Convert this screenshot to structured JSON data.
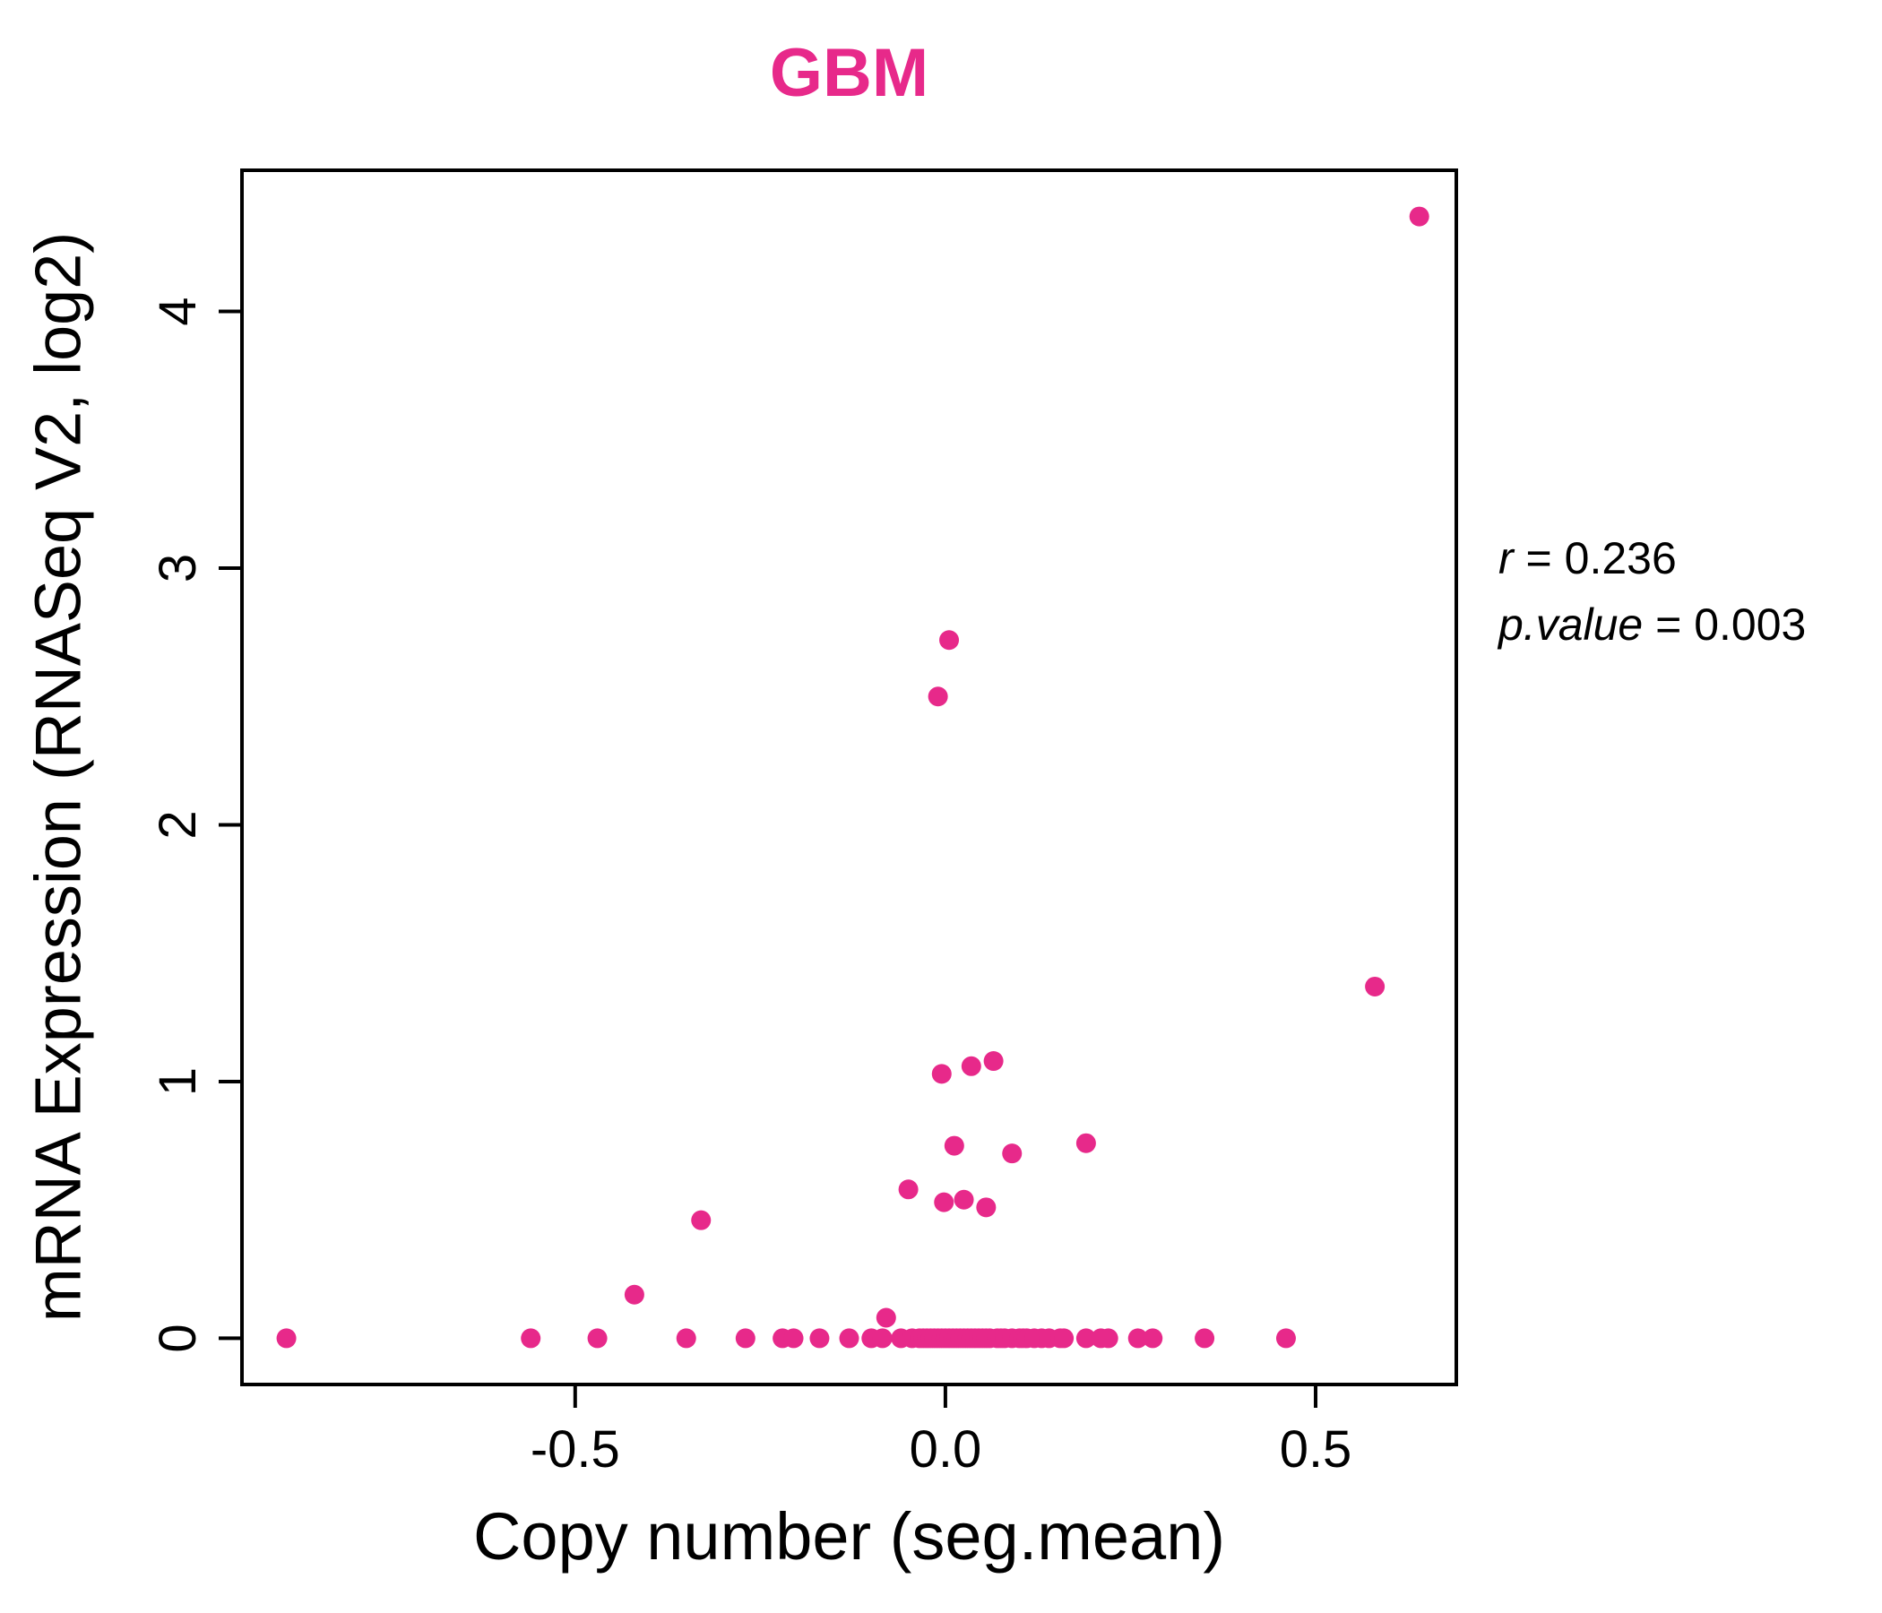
{
  "chart": {
    "title": "GBM",
    "xlabel": "Copy number (seg.mean)",
    "ylabel": "mRNA Expression (RNASeq V2, log2)",
    "annotation": {
      "r_var": "r",
      "r_rest": " = 0.236",
      "p_var": "p.value",
      "p_rest": " = 0.003"
    }
  },
  "colors": {
    "accent": "#e7298a",
    "axis": "#000000",
    "background": "#ffffff"
  },
  "chart_data": {
    "type": "scatter",
    "title": "GBM",
    "xlabel": "Copy number (seg.mean)",
    "ylabel": "mRNA Expression (RNASeq V2, log2)",
    "xlim": [
      -0.95,
      0.69
    ],
    "ylim": [
      -0.18,
      4.55
    ],
    "xticks": [
      -0.5,
      0.0,
      0.5
    ],
    "xtick_labels": [
      "-0.5",
      "0.0",
      "0.5"
    ],
    "yticks": [
      0,
      1,
      2,
      3,
      4
    ],
    "ytick_labels": [
      "0",
      "1",
      "2",
      "3",
      "4"
    ],
    "grid": false,
    "legend_position": "none",
    "point_color": "#e7298a",
    "point_radius": 11,
    "annotations": [
      "r = 0.236",
      "p.value = 0.003"
    ],
    "points": [
      [
        0.64,
        4.37
      ],
      [
        0.005,
        2.72
      ],
      [
        -0.01,
        2.5
      ],
      [
        0.58,
        1.37
      ],
      [
        -0.005,
        1.03
      ],
      [
        0.035,
        1.06
      ],
      [
        0.065,
        1.08
      ],
      [
        0.012,
        0.75
      ],
      [
        0.09,
        0.72
      ],
      [
        0.19,
        0.76
      ],
      [
        -0.05,
        0.58
      ],
      [
        -0.002,
        0.53
      ],
      [
        0.025,
        0.54
      ],
      [
        0.055,
        0.51
      ],
      [
        -0.33,
        0.46
      ],
      [
        -0.42,
        0.17
      ],
      [
        -0.08,
        0.08
      ],
      [
        -0.89,
        0
      ],
      [
        -0.56,
        0
      ],
      [
        -0.47,
        0
      ],
      [
        -0.35,
        0
      ],
      [
        -0.27,
        0
      ],
      [
        -0.22,
        0
      ],
      [
        -0.205,
        0
      ],
      [
        -0.17,
        0
      ],
      [
        -0.13,
        0
      ],
      [
        -0.1,
        0
      ],
      [
        -0.085,
        0
      ],
      [
        -0.06,
        0
      ],
      [
        -0.045,
        0
      ],
      [
        -0.035,
        0
      ],
      [
        -0.03,
        0
      ],
      [
        -0.025,
        0
      ],
      [
        -0.02,
        0
      ],
      [
        -0.015,
        0
      ],
      [
        -0.01,
        0
      ],
      [
        -0.005,
        0
      ],
      [
        0.0,
        0
      ],
      [
        0.005,
        0
      ],
      [
        0.01,
        0
      ],
      [
        0.015,
        0
      ],
      [
        0.02,
        0
      ],
      [
        0.025,
        0
      ],
      [
        0.03,
        0
      ],
      [
        0.035,
        0
      ],
      [
        0.04,
        0
      ],
      [
        0.045,
        0
      ],
      [
        0.05,
        0
      ],
      [
        0.055,
        0
      ],
      [
        0.06,
        0
      ],
      [
        0.07,
        0
      ],
      [
        0.075,
        0
      ],
      [
        0.08,
        0
      ],
      [
        0.09,
        0
      ],
      [
        0.1,
        0
      ],
      [
        0.105,
        0
      ],
      [
        0.11,
        0
      ],
      [
        0.12,
        0
      ],
      [
        0.13,
        0
      ],
      [
        0.14,
        0
      ],
      [
        0.155,
        0
      ],
      [
        0.16,
        0
      ],
      [
        0.19,
        0
      ],
      [
        0.21,
        0
      ],
      [
        0.22,
        0
      ],
      [
        0.26,
        0
      ],
      [
        0.28,
        0
      ],
      [
        0.35,
        0
      ],
      [
        0.46,
        0
      ]
    ]
  }
}
